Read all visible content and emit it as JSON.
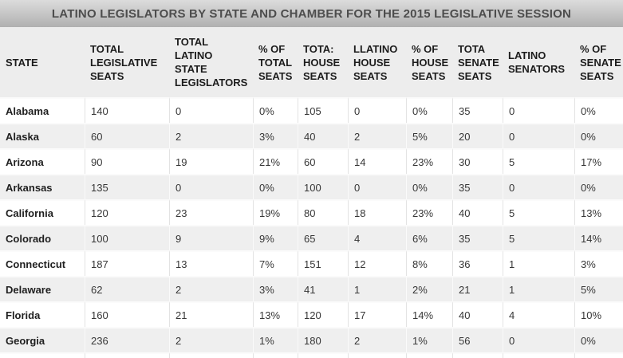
{
  "chart_data": {
    "type": "table",
    "title": "LATINO LEGISLATORS BY STATE AND CHAMBER FOR THE 2015 LEGISLATIVE SESSION",
    "columns": [
      "STATE",
      "TOTAL LEGISLATIVE SEATS",
      "TOTAL LATINO STATE LEGISLATORS",
      "% OF TOTAL SEATS",
      "TOTA: HOUSE SEATS",
      "LLATINO HOUSE SEATS",
      "% OF HOUSE SEATS",
      "TOTA SENATE SEATS",
      "LATINO SENATORS",
      "% OF SENATE SEATS"
    ],
    "rows": [
      [
        "Alabama",
        "140",
        "0",
        "0%",
        "105",
        "0",
        "0%",
        "35",
        "0",
        "0%"
      ],
      [
        "Alaska",
        "60",
        "2",
        "3%",
        "40",
        "2",
        "5%",
        "20",
        "0",
        "0%"
      ],
      [
        "Arizona",
        "90",
        "19",
        "21%",
        "60",
        "14",
        "23%",
        "30",
        "5",
        "17%"
      ],
      [
        "Arkansas",
        "135",
        "0",
        "0%",
        "100",
        "0",
        "0%",
        "35",
        "0",
        "0%"
      ],
      [
        "California",
        "120",
        "23",
        "19%",
        "80",
        "18",
        "23%",
        "40",
        "5",
        "13%"
      ],
      [
        "Colorado",
        "100",
        "9",
        "9%",
        "65",
        "4",
        "6%",
        "35",
        "5",
        "14%"
      ],
      [
        "Connecticut",
        "187",
        "13",
        "7%",
        "151",
        "12",
        "8%",
        "36",
        "1",
        "3%"
      ],
      [
        "Delaware",
        "62",
        "2",
        "3%",
        "41",
        "1",
        "2%",
        "21",
        "1",
        "5%"
      ],
      [
        "Florida",
        "160",
        "21",
        "13%",
        "120",
        "17",
        "14%",
        "40",
        "4",
        "10%"
      ],
      [
        "Georgia",
        "236",
        "2",
        "1%",
        "180",
        "2",
        "1%",
        "56",
        "0",
        "0%"
      ]
    ],
    "layout_hints": {
      "row_striping": "alternating, first data row white",
      "legend_position": "none",
      "grid": "light vertical cell separators"
    }
  },
  "colors": {
    "title_bar_gradient_top": "#dcdcdc",
    "title_bar_gradient_bottom": "#b0b0b0",
    "title_text": "#4d4d4d",
    "header_background": "#ededed",
    "header_text": "#1c1c1c",
    "row_alt_background": "#efefef",
    "cell_border": "#e3e3e3",
    "body_text": "#373737"
  }
}
